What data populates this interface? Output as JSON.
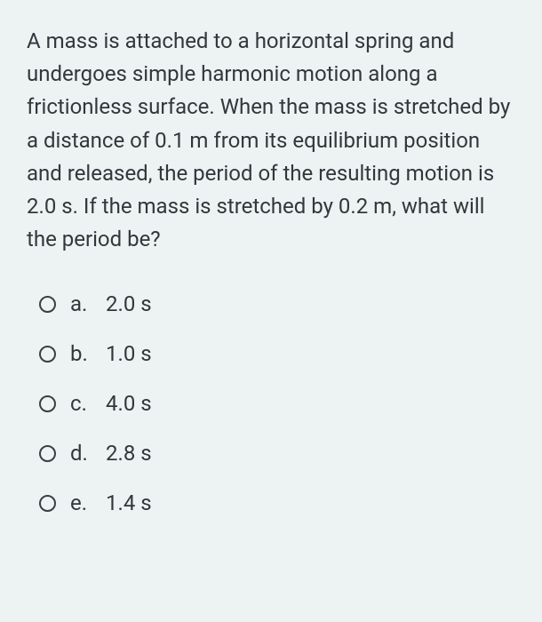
{
  "question": {
    "text": "A mass is attached to a horizontal spring and undergoes simple harmonic motion along a frictionless surface. When the mass is stretched by a distance of 0.1 m from its equilibrium position and released, the period of the resulting motion is 2.0 s. If the mass is stretched by 0.2 m, what will the period be?"
  },
  "options": [
    {
      "letter": "a.",
      "text": "2.0 s"
    },
    {
      "letter": "b.",
      "text": "1.0 s"
    },
    {
      "letter": "c.",
      "text": "4.0 s"
    },
    {
      "letter": "d.",
      "text": "2.8 s"
    },
    {
      "letter": "e.",
      "text": "1.4 s"
    }
  ],
  "styling": {
    "background_color": "#edf3f3",
    "text_color": "#32373c",
    "radio_border_color": "#3a3f44",
    "font_size_pt": 24,
    "line_height": 1.55,
    "container_width": 610,
    "container_height": 700
  }
}
